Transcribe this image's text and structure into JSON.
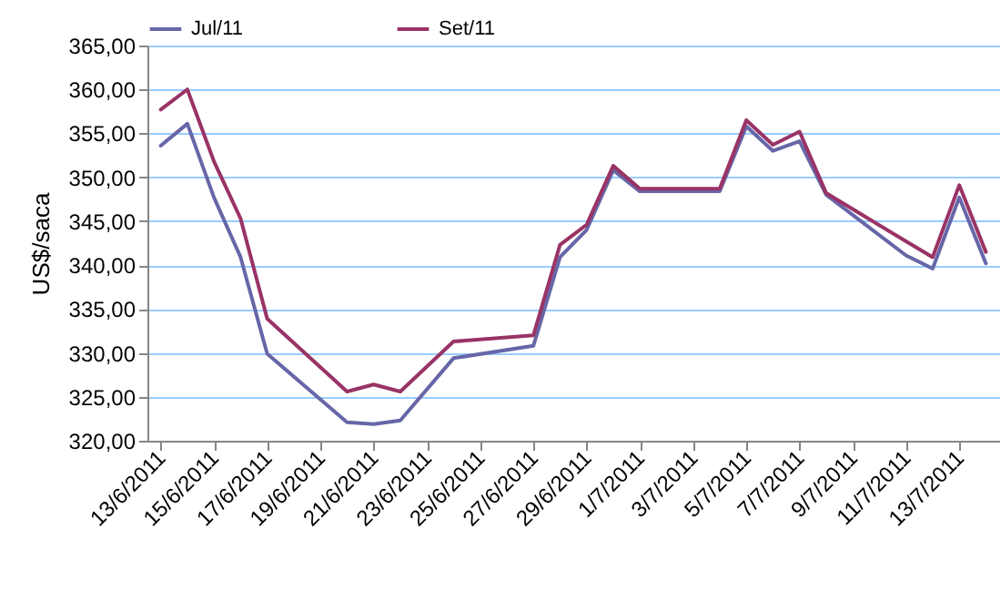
{
  "chart_data": {
    "type": "line",
    "ylabel": "US$/saca",
    "legend": "top",
    "grid": "y",
    "marker": "none",
    "line_style": "solid",
    "x": [
      "2011-06-13",
      "2011-06-14",
      "2011-06-15",
      "2011-06-16",
      "2011-06-17",
      "2011-06-20",
      "2011-06-21",
      "2011-06-22",
      "2011-06-24",
      "2011-06-27",
      "2011-06-28",
      "2011-06-29",
      "2011-06-30",
      "2011-07-01",
      "2011-07-04",
      "2011-07-05",
      "2011-07-06",
      "2011-07-07",
      "2011-07-08",
      "2011-07-11",
      "2011-07-12",
      "2011-07-13",
      "2011-07-14"
    ],
    "series": [
      {
        "name": "Jul/11",
        "color": "#6666a8",
        "values": [
          353.6,
          356.1,
          347.7,
          340.9,
          329.9,
          322.1,
          321.9,
          322.3,
          329.4,
          330.8,
          340.9,
          344.0,
          350.8,
          348.4,
          348.4,
          355.8,
          353.0,
          354.1,
          348.0,
          341.1,
          339.6,
          347.7,
          340.2
        ]
      },
      {
        "name": "Set/11",
        "color": "#993366",
        "values": [
          357.7,
          360.0,
          351.8,
          345.3,
          333.9,
          325.6,
          326.4,
          325.6,
          331.3,
          332.0,
          342.3,
          344.6,
          351.3,
          348.7,
          348.7,
          356.5,
          353.7,
          355.2,
          348.2,
          342.7,
          340.9,
          349.1,
          341.5
        ]
      }
    ],
    "xlim": [
      "2011-06-12T12:00",
      "2011-07-14T12:00"
    ],
    "xticks": [
      {
        "value": "2011-06-13",
        "label": "13/6/2011"
      },
      {
        "value": "2011-06-15",
        "label": "15/6/2011"
      },
      {
        "value": "2011-06-17",
        "label": "17/6/2011"
      },
      {
        "value": "2011-06-19",
        "label": "19/6/2011"
      },
      {
        "value": "2011-06-21",
        "label": "21/6/2011"
      },
      {
        "value": "2011-06-23",
        "label": "23/6/2011"
      },
      {
        "value": "2011-06-25",
        "label": "25/6/2011"
      },
      {
        "value": "2011-06-27",
        "label": "27/6/2011"
      },
      {
        "value": "2011-06-29",
        "label": "29/6/2011"
      },
      {
        "value": "2011-07-01",
        "label": "1/7/2011"
      },
      {
        "value": "2011-07-03",
        "label": "3/7/2011"
      },
      {
        "value": "2011-07-05",
        "label": "5/7/2011"
      },
      {
        "value": "2011-07-07",
        "label": "7/7/2011"
      },
      {
        "value": "2011-07-09",
        "label": "9/7/2011"
      },
      {
        "value": "2011-07-11",
        "label": "11/7/2011"
      },
      {
        "value": "2011-07-13",
        "label": "13/7/2011"
      }
    ],
    "ylim": [
      320,
      365
    ],
    "yticks": [
      {
        "value": 320,
        "label": "320,00"
      },
      {
        "value": 325,
        "label": "325,00"
      },
      {
        "value": 330,
        "label": "330,00"
      },
      {
        "value": 335,
        "label": "335,00"
      },
      {
        "value": 340,
        "label": "340,00"
      },
      {
        "value": 345,
        "label": "345,00"
      },
      {
        "value": 350,
        "label": "350,00"
      },
      {
        "value": 355,
        "label": "355,00"
      },
      {
        "value": 360,
        "label": "360,00"
      },
      {
        "value": 365,
        "label": "365,00"
      }
    ]
  }
}
